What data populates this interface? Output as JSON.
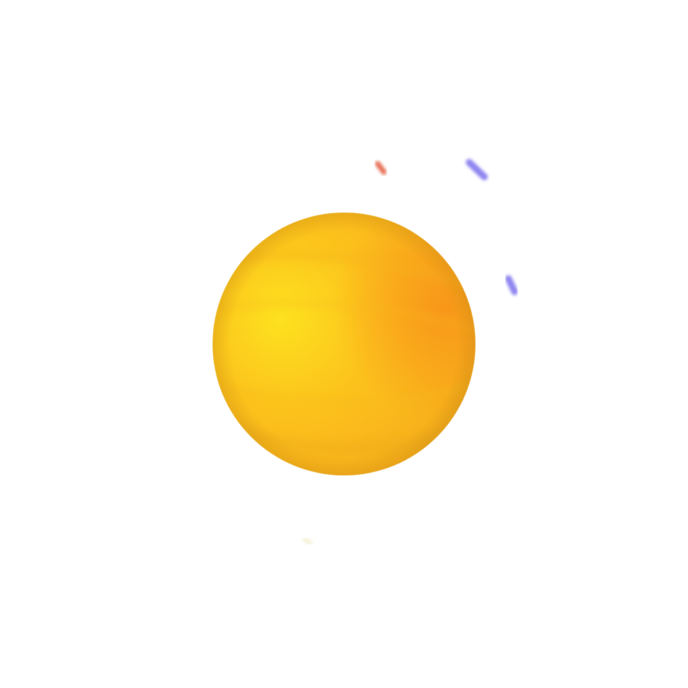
{
  "scene": {
    "background": "#ffffff",
    "sphere": {
      "colors": {
        "highlight": "#fde11f",
        "mid": "#fcc21c",
        "warm": "#f8a31a",
        "edge": "#e6a319",
        "rim_shadow": "#d68a14"
      }
    },
    "particles": [
      {
        "color": "#e8735a"
      },
      {
        "color": "#8f86f0"
      },
      {
        "color": "#8f86f0"
      },
      {
        "color": "#f2eccc"
      }
    ]
  }
}
